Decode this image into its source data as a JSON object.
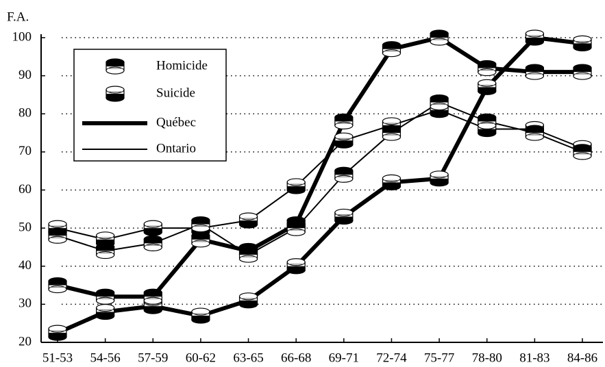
{
  "chart_data": {
    "type": "line",
    "y_label": "F.A.",
    "categories": [
      "51-53",
      "54-56",
      "57-59",
      "60-62",
      "63-65",
      "66-68",
      "69-71",
      "72-74",
      "75-77",
      "78-80",
      "81-83",
      "84-86"
    ],
    "ylim": [
      20,
      100
    ],
    "yticks": [
      20,
      30,
      40,
      50,
      60,
      70,
      80,
      90,
      100
    ],
    "grid": true,
    "marker_legend": [
      "Homicide",
      "Suicide"
    ],
    "line_legend": [
      "Québec",
      "Ontario"
    ],
    "series": [
      {
        "line": 0,
        "marker": 1,
        "color": "#000",
        "values": [
          22.5,
          28,
          29.5,
          27,
          31,
          40,
          53,
          62,
          63,
          87,
          100,
          98.5
        ]
      },
      {
        "line": 0,
        "marker": 0,
        "color": "#000",
        "values": [
          35,
          32,
          32,
          47,
          44,
          51,
          78,
          97,
          100,
          92,
          91,
          91
        ]
      },
      {
        "line": 1,
        "marker": 1,
        "color": "#000",
        "values": [
          50,
          47,
          50,
          50,
          52,
          61,
          73,
          77,
          81,
          76,
          76,
          71
        ]
      },
      {
        "line": 1,
        "marker": 0,
        "color": "#000",
        "values": [
          48,
          44,
          46,
          51,
          43,
          50,
          64,
          75,
          83,
          78,
          75,
          70
        ]
      }
    ]
  }
}
